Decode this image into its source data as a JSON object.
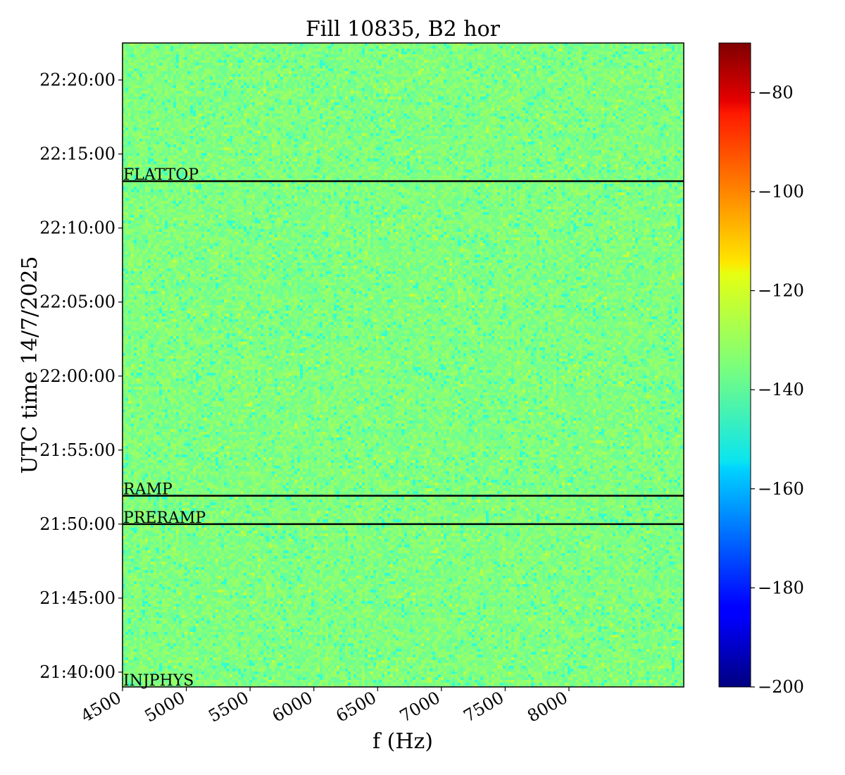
{
  "chart_data": {
    "type": "heatmap",
    "title": "Fill 10835, B2 hor",
    "xlabel": "f (Hz)",
    "ylabel": "UTC time 14/7/2025",
    "xlim": [
      4500,
      8900
    ],
    "ylim": [
      "21:39:00",
      "22:22:30"
    ],
    "x_ticks": [
      4500,
      5000,
      5500,
      6000,
      6500,
      7000,
      7500,
      8000
    ],
    "y_ticks": [
      "21:40:00",
      "21:45:00",
      "21:50:00",
      "21:55:00",
      "22:00:00",
      "22:05:00",
      "22:10:00",
      "22:15:00",
      "22:20:00"
    ],
    "colormap": "jet",
    "colorbar": {
      "min": -200,
      "max": -70,
      "ticks": [
        -80,
        -100,
        -120,
        -140,
        -160,
        -180,
        -200
      ]
    },
    "typical_value": -135,
    "annotations": [
      {
        "label": "INJPHYS",
        "time": "21:39:00"
      },
      {
        "label": "PRERAMP",
        "time": "21:50:00"
      },
      {
        "label": "RAMP",
        "time": "21:51:55"
      },
      {
        "label": "FLATTOP",
        "time": "22:13:10"
      }
    ],
    "grid": false
  }
}
